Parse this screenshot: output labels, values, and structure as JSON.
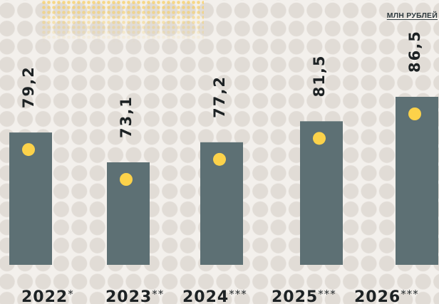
{
  "unit_label": "МЛН РУБЛЕЙ",
  "colors": {
    "bar": "#5d7074",
    "dot": "#fcd24a",
    "text": "#1d2224",
    "background": "#f3f0ec"
  },
  "chart_data": {
    "type": "bar",
    "categories": [
      "2022*",
      "2023**",
      "2024***",
      "2025***",
      "2026***"
    ],
    "series": [
      {
        "values": [
          79.2,
          73.1,
          77.2,
          81.5,
          86.5
        ]
      }
    ],
    "value_labels": [
      "79,2",
      "73,1",
      "77,2",
      "81,5",
      "86,5"
    ],
    "ylabel": "МЛН РУБЛЕЙ",
    "grid": false,
    "legend": "none"
  }
}
